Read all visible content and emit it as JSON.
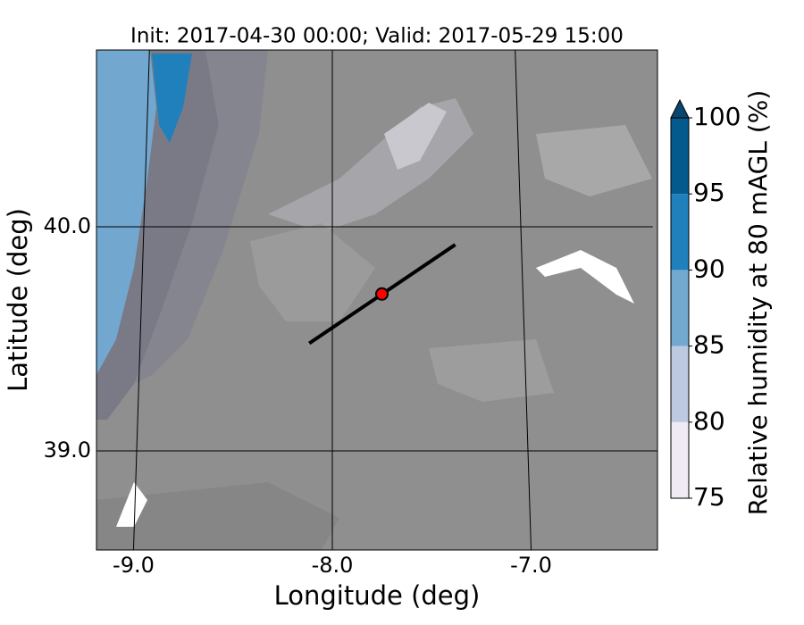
{
  "title": "Init: 2017-04-30 00:00; Valid: 2017-05-29 15:00",
  "xlabel": "Longitude (deg)",
  "ylabel": "Latitude (deg)",
  "xticks": [
    {
      "value": -9,
      "label": "-9.0"
    },
    {
      "value": -8,
      "label": "-8.0"
    },
    {
      "value": -7,
      "label": "-7.0"
    }
  ],
  "yticks": [
    {
      "value": 39,
      "label": "39.0"
    },
    {
      "value": 40,
      "label": "40.0"
    }
  ],
  "colorbar": {
    "label": "Relative humidity at 80 mAGL (%)",
    "levels": [
      75,
      80,
      85,
      90,
      95,
      100
    ],
    "colors": [
      "#efeaf3",
      "#bdc8e1",
      "#74a9cf",
      "#2080bb",
      "#045a8d"
    ],
    "extend": "max",
    "extend_color": "#08456f"
  },
  "section": {
    "lon": [
      -8.12,
      -7.35
    ],
    "lat": [
      39.48,
      39.92
    ]
  },
  "site": {
    "lon": -7.74,
    "lat": 39.7,
    "color": "#ff0000"
  }
}
